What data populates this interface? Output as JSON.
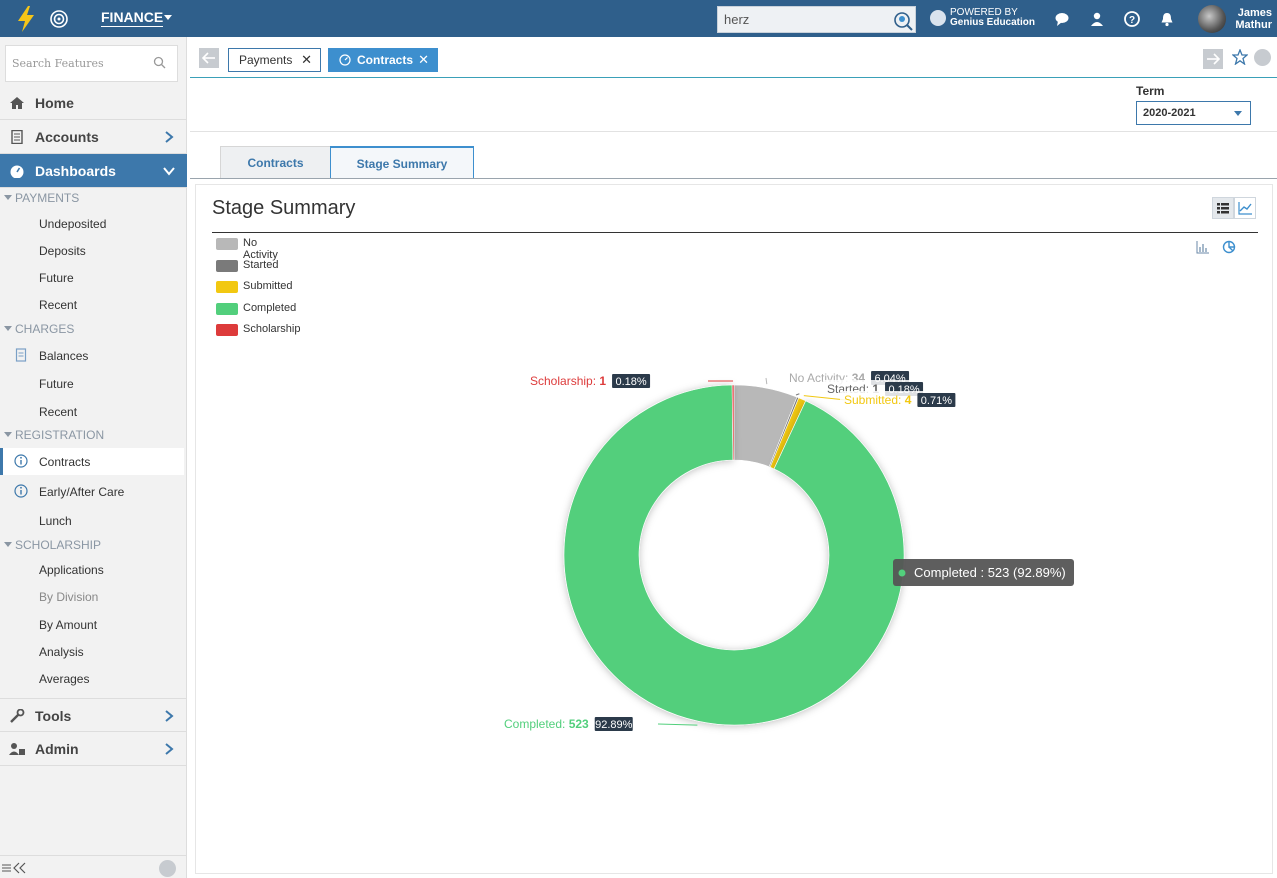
{
  "topbar": {
    "app_name": "FINANCE",
    "search_value": "herz",
    "powered_line1": "POWERED BY",
    "powered_line2": "Genius Education",
    "user_first": "James",
    "user_last": "Mathur"
  },
  "sidebar": {
    "search_placeholder": "Search Features",
    "home": "Home",
    "accounts": "Accounts",
    "dashboards": "Dashboards",
    "sections": {
      "payments": "PAYMENTS",
      "charges": "CHARGES",
      "registration": "REGISTRATION",
      "scholarship": "SCHOLARSHIP"
    },
    "payments_items": [
      "Undeposited",
      "Deposits",
      "Future",
      "Recent"
    ],
    "charges_items": [
      "Balances",
      "Future",
      "Recent"
    ],
    "registration_items": [
      "Contracts",
      "Early/After Care",
      "Lunch"
    ],
    "scholarship_items": [
      "Applications",
      "By Division",
      "By Amount",
      "Analysis",
      "Averages"
    ],
    "tools": "Tools",
    "admin": "Admin"
  },
  "page_tabs": [
    {
      "label": "Payments"
    },
    {
      "label": "Contracts"
    }
  ],
  "term": {
    "label": "Term",
    "value": "2020-2021"
  },
  "sub_tabs": [
    "Contracts",
    "Stage Summary"
  ],
  "panel": {
    "title": "Stage Summary"
  },
  "colors": {
    "no_activity": "#b8b8b8",
    "started": "#7a7a7a",
    "submitted": "#f2c811",
    "completed": "#52cf7c",
    "scholarship": "#dd3b3b",
    "primary": "#2f5f8b"
  },
  "chart_data": {
    "type": "pie",
    "variant": "donut",
    "legend_position": "top-left",
    "series": [
      {
        "name": "No Activity",
        "value": 34,
        "percent": "6.04%",
        "label_value": "34"
      },
      {
        "name": "Started",
        "value": 1,
        "percent": "0.18%",
        "label_value": "1"
      },
      {
        "name": "Submitted",
        "value": 4,
        "percent": "0.71%",
        "label_value": "4"
      },
      {
        "name": "Completed",
        "value": 523,
        "percent": "92.89%",
        "label_value": "523"
      },
      {
        "name": "Scholarship",
        "value": 1,
        "percent": "0.18%",
        "label_value": "1"
      }
    ],
    "tooltip": "Completed : 523 (92.89%)"
  }
}
